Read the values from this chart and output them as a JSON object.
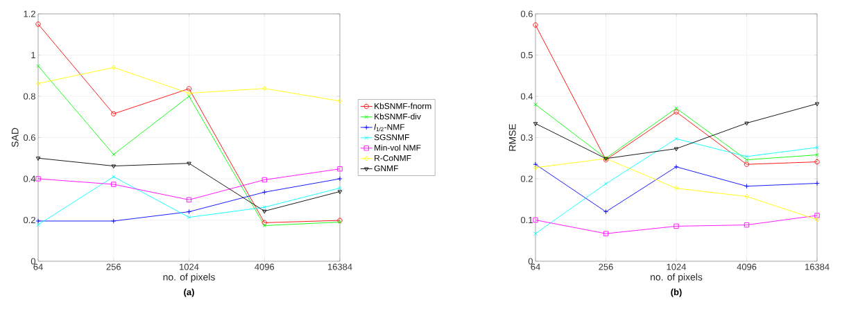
{
  "chart_data": [
    {
      "type": "line",
      "title": "(a)",
      "xlabel": "no. of pixels",
      "ylabel": "SAD",
      "categories": [
        "64",
        "256",
        "1024",
        "4096",
        "16384"
      ],
      "ylim": [
        0,
        1.2
      ],
      "yticks": [
        0,
        0.2,
        0.4,
        0.6,
        0.8,
        1,
        1.2
      ],
      "grid": true,
      "legend": "right",
      "line_style": "solid",
      "series": [
        {
          "name": "KbSNMF-fnorm",
          "color": "#ff0000",
          "marker": "circle",
          "values": [
            1.15,
            0.715,
            0.837,
            0.187,
            0.198
          ]
        },
        {
          "name": "KbSNMF-div",
          "color": "#00ff00",
          "marker": "cross",
          "values": [
            0.947,
            0.518,
            0.8,
            0.173,
            0.19
          ]
        },
        {
          "name": "*l*$_{1/2}$-NMF",
          "color": "#0000ff",
          "marker": "plus",
          "values": [
            0.195,
            0.195,
            0.24,
            0.335,
            0.4
          ]
        },
        {
          "name": "SGSNMF",
          "color": "#00ffff",
          "marker": "cross",
          "values": [
            0.177,
            0.41,
            0.213,
            0.262,
            0.355
          ]
        },
        {
          "name": "Min-vol NMF",
          "color": "#ff00ff",
          "marker": "square",
          "values": [
            0.4,
            0.373,
            0.298,
            0.395,
            0.448
          ]
        },
        {
          "name": "R-CoNMF",
          "color": "#ffff00",
          "marker": "diamond",
          "values": [
            0.862,
            0.94,
            0.815,
            0.838,
            0.777
          ]
        },
        {
          "name": "GNMF",
          "color": "#000000",
          "marker": "triangle",
          "values": [
            0.5,
            0.462,
            0.475,
            0.243,
            0.338
          ]
        }
      ]
    },
    {
      "type": "line",
      "title": "(b)",
      "xlabel": "no. of pixels",
      "ylabel": "RMSE",
      "categories": [
        "64",
        "256",
        "1024",
        "4096",
        "16384"
      ],
      "ylim": [
        0,
        0.6
      ],
      "yticks": [
        0,
        0.1,
        0.2,
        0.3,
        0.4,
        0.5,
        0.6
      ],
      "grid": true,
      "line_style": "solid",
      "series": [
        {
          "color": "#ff0000",
          "marker": "circle",
          "values": [
            0.573,
            0.246,
            0.362,
            0.235,
            0.241
          ]
        },
        {
          "color": "#00ff00",
          "marker": "cross",
          "values": [
            0.38,
            0.25,
            0.371,
            0.246,
            0.258
          ]
        },
        {
          "color": "#0000ff",
          "marker": "plus",
          "values": [
            0.235,
            0.12,
            0.229,
            0.182,
            0.189
          ]
        },
        {
          "color": "#00ffff",
          "marker": "cross",
          "values": [
            0.067,
            0.188,
            0.297,
            0.254,
            0.276
          ]
        },
        {
          "color": "#ff00ff",
          "marker": "square",
          "values": [
            0.1,
            0.067,
            0.085,
            0.088,
            0.111
          ]
        },
        {
          "color": "#ffff00",
          "marker": "diamond",
          "values": [
            0.227,
            0.249,
            0.177,
            0.157,
            0.101
          ]
        },
        {
          "color": "#000000",
          "marker": "triangle",
          "values": [
            0.334,
            0.249,
            0.273,
            0.335,
            0.382
          ]
        }
      ]
    }
  ]
}
